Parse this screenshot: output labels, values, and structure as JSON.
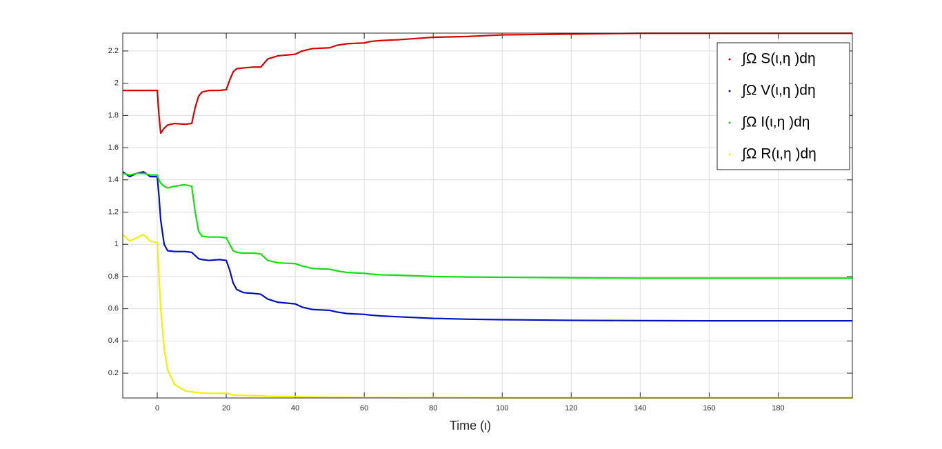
{
  "chart_data": {
    "type": "line",
    "xlabel": "Time (ι)",
    "x": [
      -10,
      -8,
      -6,
      -4,
      -2,
      0,
      0.5,
      1,
      2,
      3,
      5,
      8,
      10,
      11,
      12,
      13,
      15,
      18,
      20,
      21,
      22,
      23,
      25,
      28,
      30,
      32,
      35,
      40,
      42,
      45,
      50,
      52,
      55,
      60,
      62,
      65,
      70,
      80,
      90,
      100,
      120,
      140,
      160,
      180,
      201.5
    ],
    "series": [
      {
        "name": "∫Ω S(ι,η )dη",
        "color": "#d40000",
        "values": [
          1.955,
          1.955,
          1.955,
          1.955,
          1.955,
          1.955,
          1.8,
          1.69,
          1.72,
          1.74,
          1.75,
          1.745,
          1.75,
          1.85,
          1.92,
          1.945,
          1.955,
          1.955,
          1.96,
          2.02,
          2.07,
          2.09,
          2.095,
          2.1,
          2.1,
          2.15,
          2.17,
          2.18,
          2.2,
          2.215,
          2.22,
          2.235,
          2.245,
          2.25,
          2.26,
          2.265,
          2.27,
          2.285,
          2.29,
          2.3,
          2.305,
          2.31,
          2.31,
          2.31,
          2.31
        ]
      },
      {
        "name": "∫Ω V(ι,η )dη",
        "color": "#0010c0",
        "values": [
          1.45,
          1.42,
          1.44,
          1.45,
          1.42,
          1.42,
          1.3,
          1.15,
          1.0,
          0.96,
          0.955,
          0.955,
          0.95,
          0.93,
          0.91,
          0.905,
          0.9,
          0.905,
          0.9,
          0.84,
          0.76,
          0.72,
          0.7,
          0.695,
          0.69,
          0.66,
          0.64,
          0.63,
          0.61,
          0.595,
          0.59,
          0.58,
          0.57,
          0.565,
          0.56,
          0.555,
          0.55,
          0.54,
          0.535,
          0.532,
          0.528,
          0.526,
          0.525,
          0.525,
          0.525
        ]
      },
      {
        "name": "∫Ω I(ι,η )dη",
        "color": "#10e010",
        "values": [
          1.44,
          1.43,
          1.44,
          1.44,
          1.43,
          1.43,
          1.4,
          1.38,
          1.36,
          1.35,
          1.36,
          1.37,
          1.36,
          1.2,
          1.08,
          1.05,
          1.045,
          1.045,
          1.04,
          1.0,
          0.96,
          0.95,
          0.945,
          0.945,
          0.94,
          0.9,
          0.885,
          0.88,
          0.865,
          0.85,
          0.845,
          0.835,
          0.825,
          0.82,
          0.815,
          0.81,
          0.808,
          0.8,
          0.797,
          0.795,
          0.792,
          0.79,
          0.79,
          0.79,
          0.79
        ]
      },
      {
        "name": "∫Ω R(ι,η )dη",
        "color": "#f5f000",
        "values": [
          1.06,
          1.02,
          1.04,
          1.06,
          1.02,
          1.01,
          0.8,
          0.6,
          0.35,
          0.22,
          0.13,
          0.09,
          0.085,
          0.08,
          0.078,
          0.077,
          0.075,
          0.075,
          0.076,
          0.07,
          0.065,
          0.063,
          0.062,
          0.06,
          0.06,
          0.057,
          0.055,
          0.055,
          0.052,
          0.052,
          0.05,
          0.05,
          0.05,
          0.049,
          0.049,
          0.049,
          0.048,
          0.048,
          0.048,
          0.047,
          0.047,
          0.047,
          0.047,
          0.047,
          0.047
        ]
      }
    ],
    "xlim": [
      -10,
      201.5
    ],
    "xticks": [
      0,
      20,
      40,
      60,
      80,
      100,
      120,
      140,
      160,
      180
    ],
    "ylim": [
      0.046,
      2.311
    ],
    "yticks": [
      0.2,
      0.4,
      0.6,
      0.8,
      1,
      1.2,
      1.4,
      1.6,
      1.8,
      2,
      2.2
    ],
    "grid": true,
    "legend": "northeast"
  }
}
